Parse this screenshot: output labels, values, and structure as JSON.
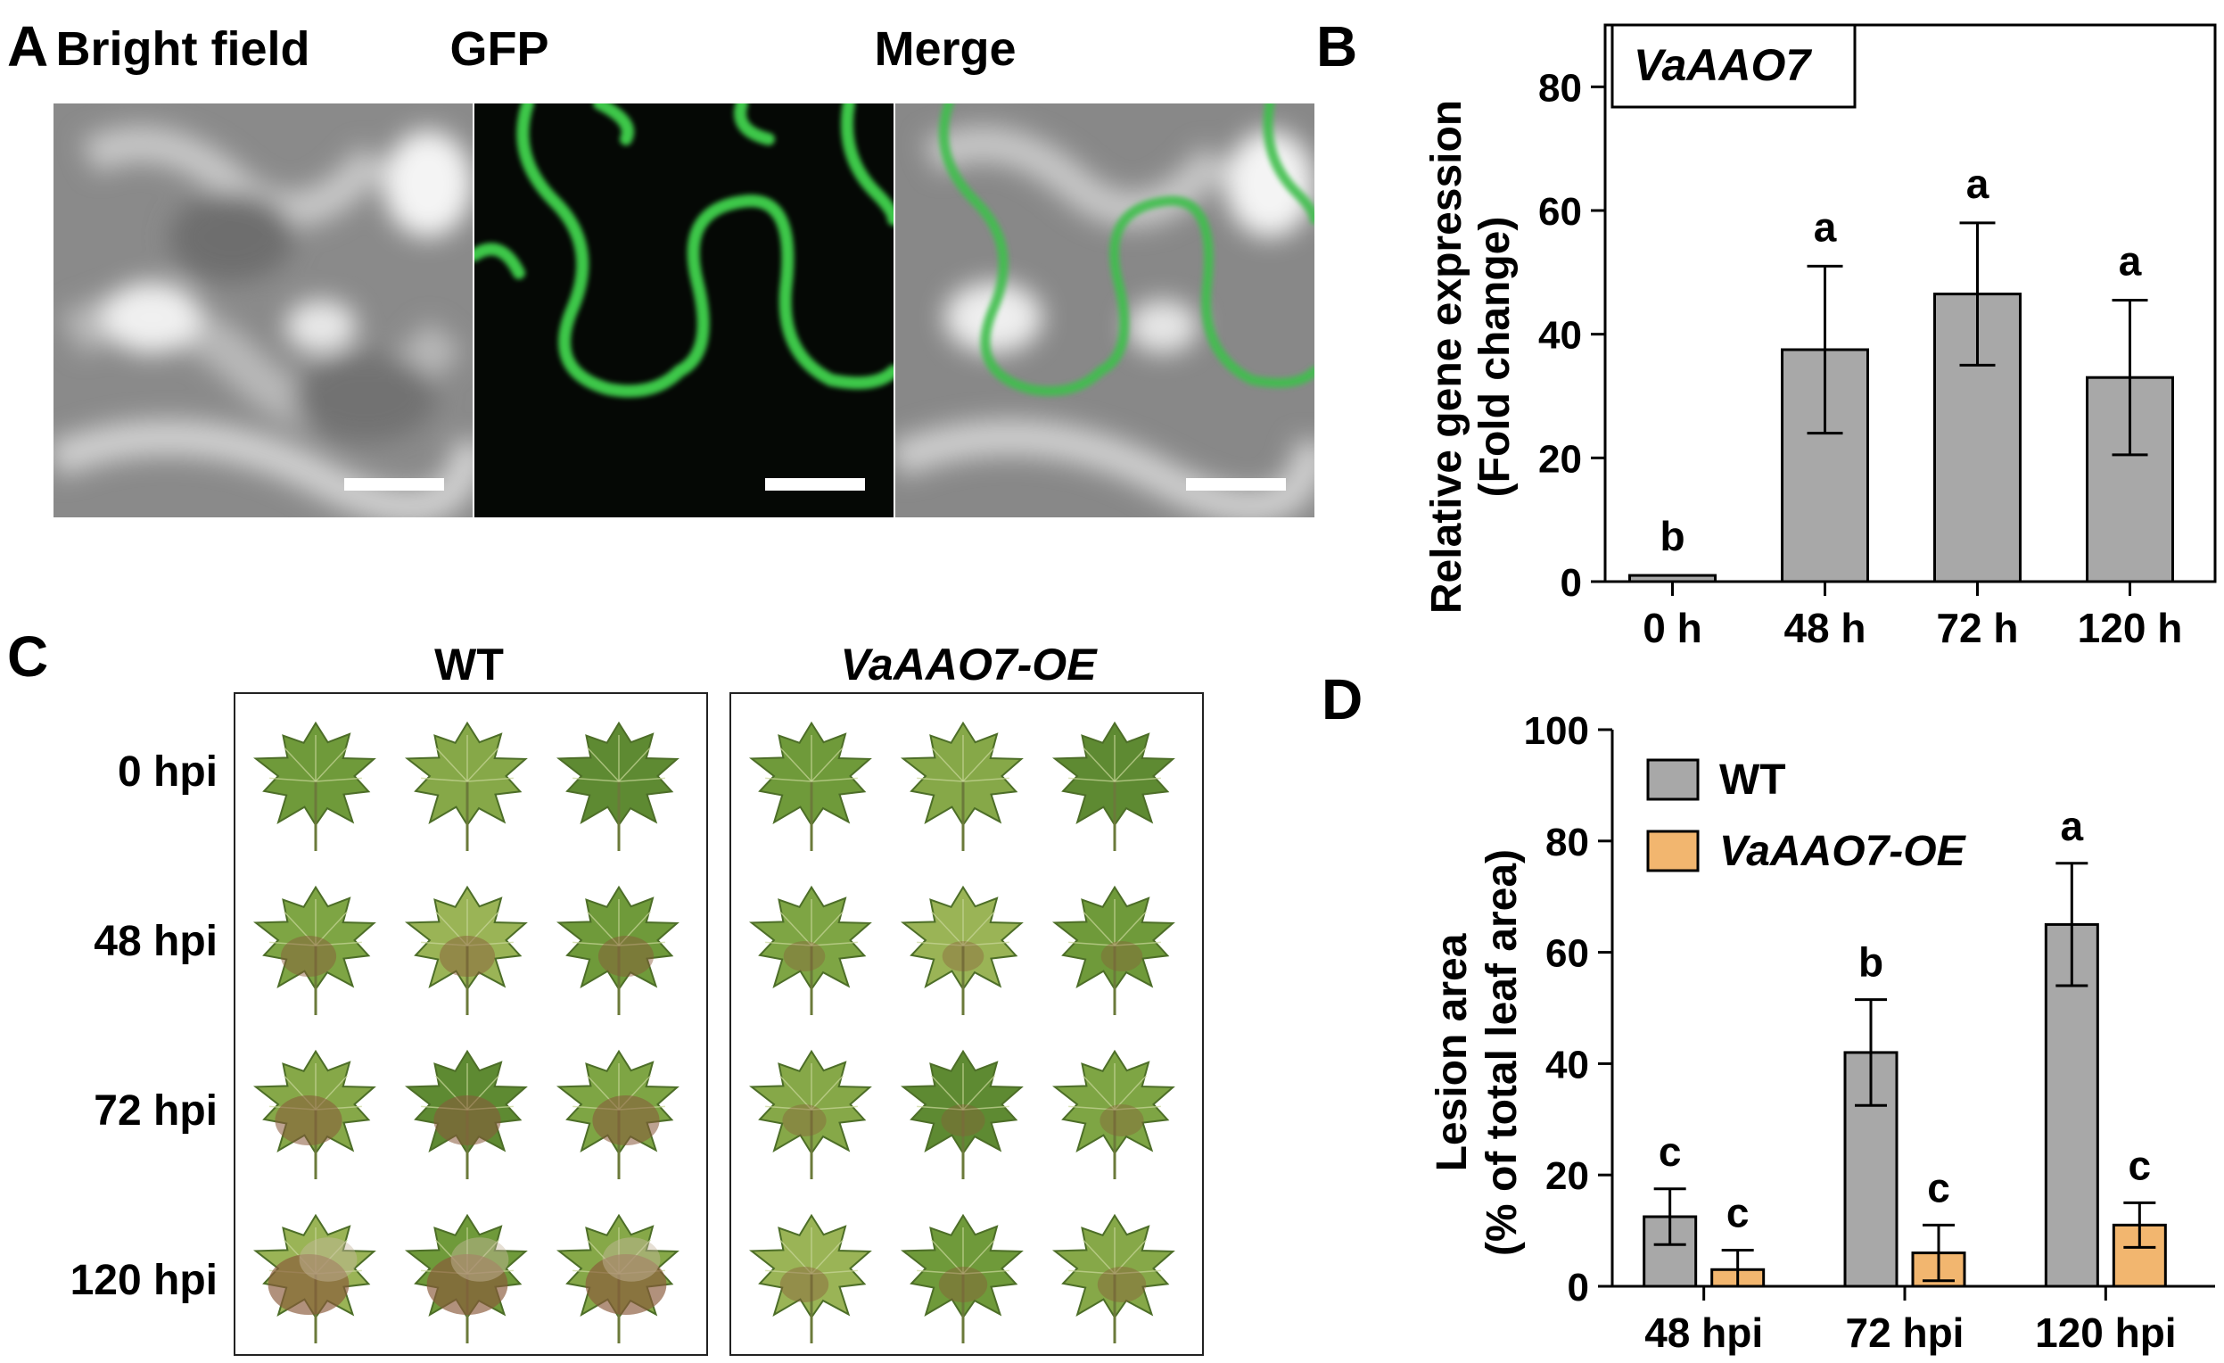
{
  "panel_a": {
    "letter": "A",
    "titles": [
      "Bright field",
      "GFP",
      "Merge"
    ]
  },
  "panel_b": {
    "letter": "B"
  },
  "panel_c": {
    "letter": "C",
    "groups": [
      "WT",
      "VaAAO7-OE"
    ],
    "rows": [
      "0 hpi",
      "48 hpi",
      "72 hpi",
      "120 hpi"
    ]
  },
  "panel_d": {
    "letter": "D"
  },
  "chart_data": [
    {
      "type": "bar",
      "panel": "B",
      "inset_label": "VaAAO7",
      "ylabel": "Relative gene expression (Fold change)",
      "ylabel_lines": [
        "Relative gene expression",
        "(Fold change)"
      ],
      "categories": [
        "0 h",
        "48 h",
        "72 h",
        "120 h"
      ],
      "values": [
        1,
        37.5,
        46.5,
        33
      ],
      "errors": [
        0,
        13.5,
        11.5,
        12.5
      ],
      "letters": [
        "b",
        "a",
        "a",
        "a"
      ],
      "ylim": [
        0,
        90
      ],
      "yticks": [
        0,
        20,
        40,
        60,
        80
      ],
      "bar_color": "#a8a8a8"
    },
    {
      "type": "bar",
      "panel": "D",
      "ylabel": "Lesion area (% of total leaf area)",
      "ylabel_lines": [
        "Lesion area",
        "(% of total leaf area)"
      ],
      "categories": [
        "48 hpi",
        "72 hpi",
        "120 hpi"
      ],
      "series": [
        {
          "name": "WT",
          "color": "#a8a8a8",
          "values": [
            12.5,
            42,
            65
          ],
          "errors": [
            5,
            9.5,
            11
          ],
          "letters": [
            "c",
            "b",
            "a"
          ]
        },
        {
          "name": "VaAAO7-OE",
          "color": "#f2b66f",
          "values": [
            3,
            6,
            11
          ],
          "errors": [
            3.5,
            5,
            4
          ],
          "letters": [
            "c",
            "c",
            "c"
          ]
        }
      ],
      "legend_position": "top-left",
      "ylim": [
        0,
        100
      ],
      "yticks": [
        0,
        20,
        40,
        60,
        80,
        100
      ]
    }
  ]
}
